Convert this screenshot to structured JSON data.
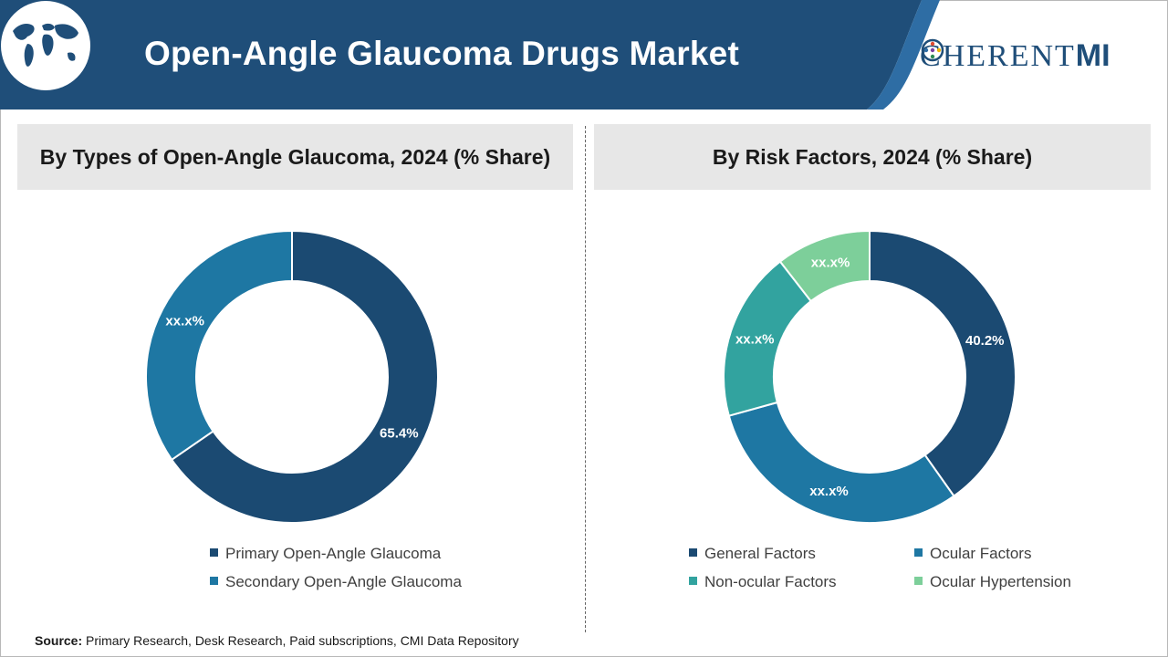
{
  "header": {
    "title": "Open-Angle Glaucoma Drugs Market",
    "colors": {
      "banner": "#1f4e79",
      "accent": "#2e6da4"
    }
  },
  "logo": {
    "part1": "C",
    "part2": "HERENT",
    "part3": "MI"
  },
  "chart_data": [
    {
      "type": "pie",
      "title": "By Types of Open-Angle Glaucoma, 2024 (% Share)",
      "categories": [
        "Primary Open-Angle Glaucoma",
        "Secondary Open-Angle Glaucoma"
      ],
      "values": [
        65.4,
        34.6
      ],
      "labels": [
        "65.4%",
        "xx.x%"
      ],
      "colors": [
        "#1b4a72",
        "#1e77a3"
      ],
      "donut": true,
      "legend_position": "bottom"
    },
    {
      "type": "pie",
      "title": "By Risk Factors, 2024 (% Share)",
      "categories": [
        "General Factors",
        "Ocular Factors",
        "Non-ocular Factors",
        "Ocular Hypertension"
      ],
      "values": [
        40.2,
        30.5,
        18.8,
        10.5
      ],
      "labels": [
        "40.2%",
        "xx.x%",
        "xx.x%",
        "xx.x%"
      ],
      "colors": [
        "#1b4a72",
        "#1e77a3",
        "#32a39f",
        "#7dcf9a"
      ],
      "donut": true,
      "legend_position": "bottom"
    }
  ],
  "source": {
    "label": "Source:",
    "text": " Primary Research, Desk Research, Paid subscriptions, CMI Data Repository"
  }
}
